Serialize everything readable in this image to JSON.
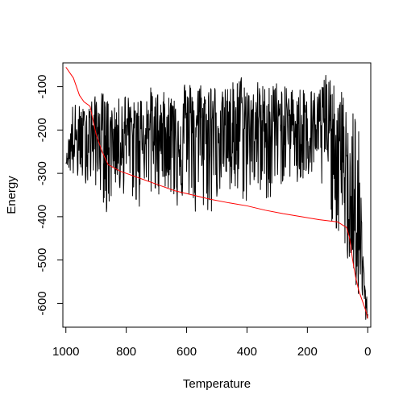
{
  "chart_data": {
    "type": "line",
    "title": "",
    "xlabel": "Temperature",
    "ylabel": "Energy",
    "xlim": [
      1010,
      -10
    ],
    "ylim": [
      -655,
      -45
    ],
    "x_ticks": [
      1000,
      800,
      600,
      400,
      200,
      0
    ],
    "x_tick_labels": [
      "1000",
      "800",
      "600",
      "400",
      "200",
      "0"
    ],
    "y_ticks": [
      -100,
      -200,
      -300,
      -400,
      -500,
      -600
    ],
    "y_tick_labels": [
      "-100",
      "-200",
      "-300",
      "-400",
      "-500",
      "-600"
    ],
    "grid": false,
    "legend": "none",
    "series": [
      {
        "color": "#000000",
        "style": "noisy",
        "x": [
          1000,
          980,
          960,
          940,
          920,
          900,
          880,
          860,
          840,
          820,
          800,
          780,
          760,
          740,
          720,
          700,
          680,
          660,
          640,
          620,
          600,
          580,
          560,
          540,
          520,
          500,
          480,
          460,
          440,
          420,
          400,
          380,
          360,
          340,
          320,
          300,
          280,
          260,
          240,
          220,
          200,
          180,
          160,
          140,
          120,
          100,
          90,
          80,
          70,
          60,
          50,
          40,
          30,
          20,
          10,
          5,
          0
        ],
        "y": [
          -275,
          -230,
          -220,
          -200,
          -190,
          -210,
          -195,
          -200,
          -205,
          -210,
          -195,
          -200,
          -205,
          -200,
          -195,
          -200,
          -195,
          -190,
          -190,
          -195,
          -190,
          -185,
          -190,
          -195,
          -190,
          -180,
          -190,
          -195,
          -190,
          -180,
          -185,
          -185,
          -180,
          -185,
          -180,
          -185,
          -180,
          -175,
          -180,
          -185,
          -180,
          -185,
          -190,
          -190,
          -195,
          -240,
          -270,
          -300,
          -330,
          -370,
          -400,
          -440,
          -470,
          -500,
          -560,
          -600,
          -620
        ],
        "low": [
          -275,
          -310,
          -320,
          -320,
          -330,
          -330,
          -355,
          -415,
          -320,
          -360,
          -340,
          -360,
          -395,
          -320,
          -360,
          -360,
          -330,
          -340,
          -380,
          -380,
          -345,
          -380,
          -455,
          -375,
          -410,
          -360,
          -330,
          -360,
          -370,
          -360,
          -375,
          -320,
          -380,
          -360,
          -370,
          -320,
          -330,
          -310,
          -330,
          -350,
          -310,
          -330,
          -350,
          -330,
          -410,
          -440,
          -460,
          -480,
          -500,
          -520,
          -540,
          -560,
          -600,
          -635,
          -640,
          -640,
          -640
        ],
        "high": [
          -275,
          -135,
          -140,
          -150,
          -130,
          -120,
          -110,
          -130,
          -150,
          -120,
          -110,
          -140,
          -120,
          -120,
          -100,
          -110,
          -110,
          -120,
          -100,
          -85,
          -75,
          -100,
          -80,
          -100,
          -80,
          -100,
          -110,
          -95,
          -80,
          -70,
          -90,
          -110,
          -80,
          -100,
          -70,
          -90,
          -100,
          -100,
          -100,
          -100,
          -90,
          -110,
          -100,
          -55,
          -90,
          -110,
          -100,
          -120,
          -140,
          -130,
          -150,
          -140,
          -200,
          -380,
          -560,
          -580,
          -590
        ]
      },
      {
        "color": "#ff0000",
        "style": "smooth",
        "x": [
          1000,
          975,
          955,
          940,
          920,
          900,
          880,
          860,
          820,
          760,
          700,
          640,
          580,
          520,
          460,
          400,
          340,
          280,
          220,
          160,
          100,
          70,
          60,
          50,
          40,
          30,
          15,
          5,
          0
        ],
        "y": [
          -55,
          -80,
          -120,
          -135,
          -145,
          -210,
          -250,
          -280,
          -295,
          -310,
          -325,
          -340,
          -350,
          -360,
          -368,
          -375,
          -385,
          -393,
          -400,
          -407,
          -412,
          -425,
          -450,
          -500,
          -540,
          -570,
          -600,
          -620,
          -635
        ]
      }
    ]
  }
}
